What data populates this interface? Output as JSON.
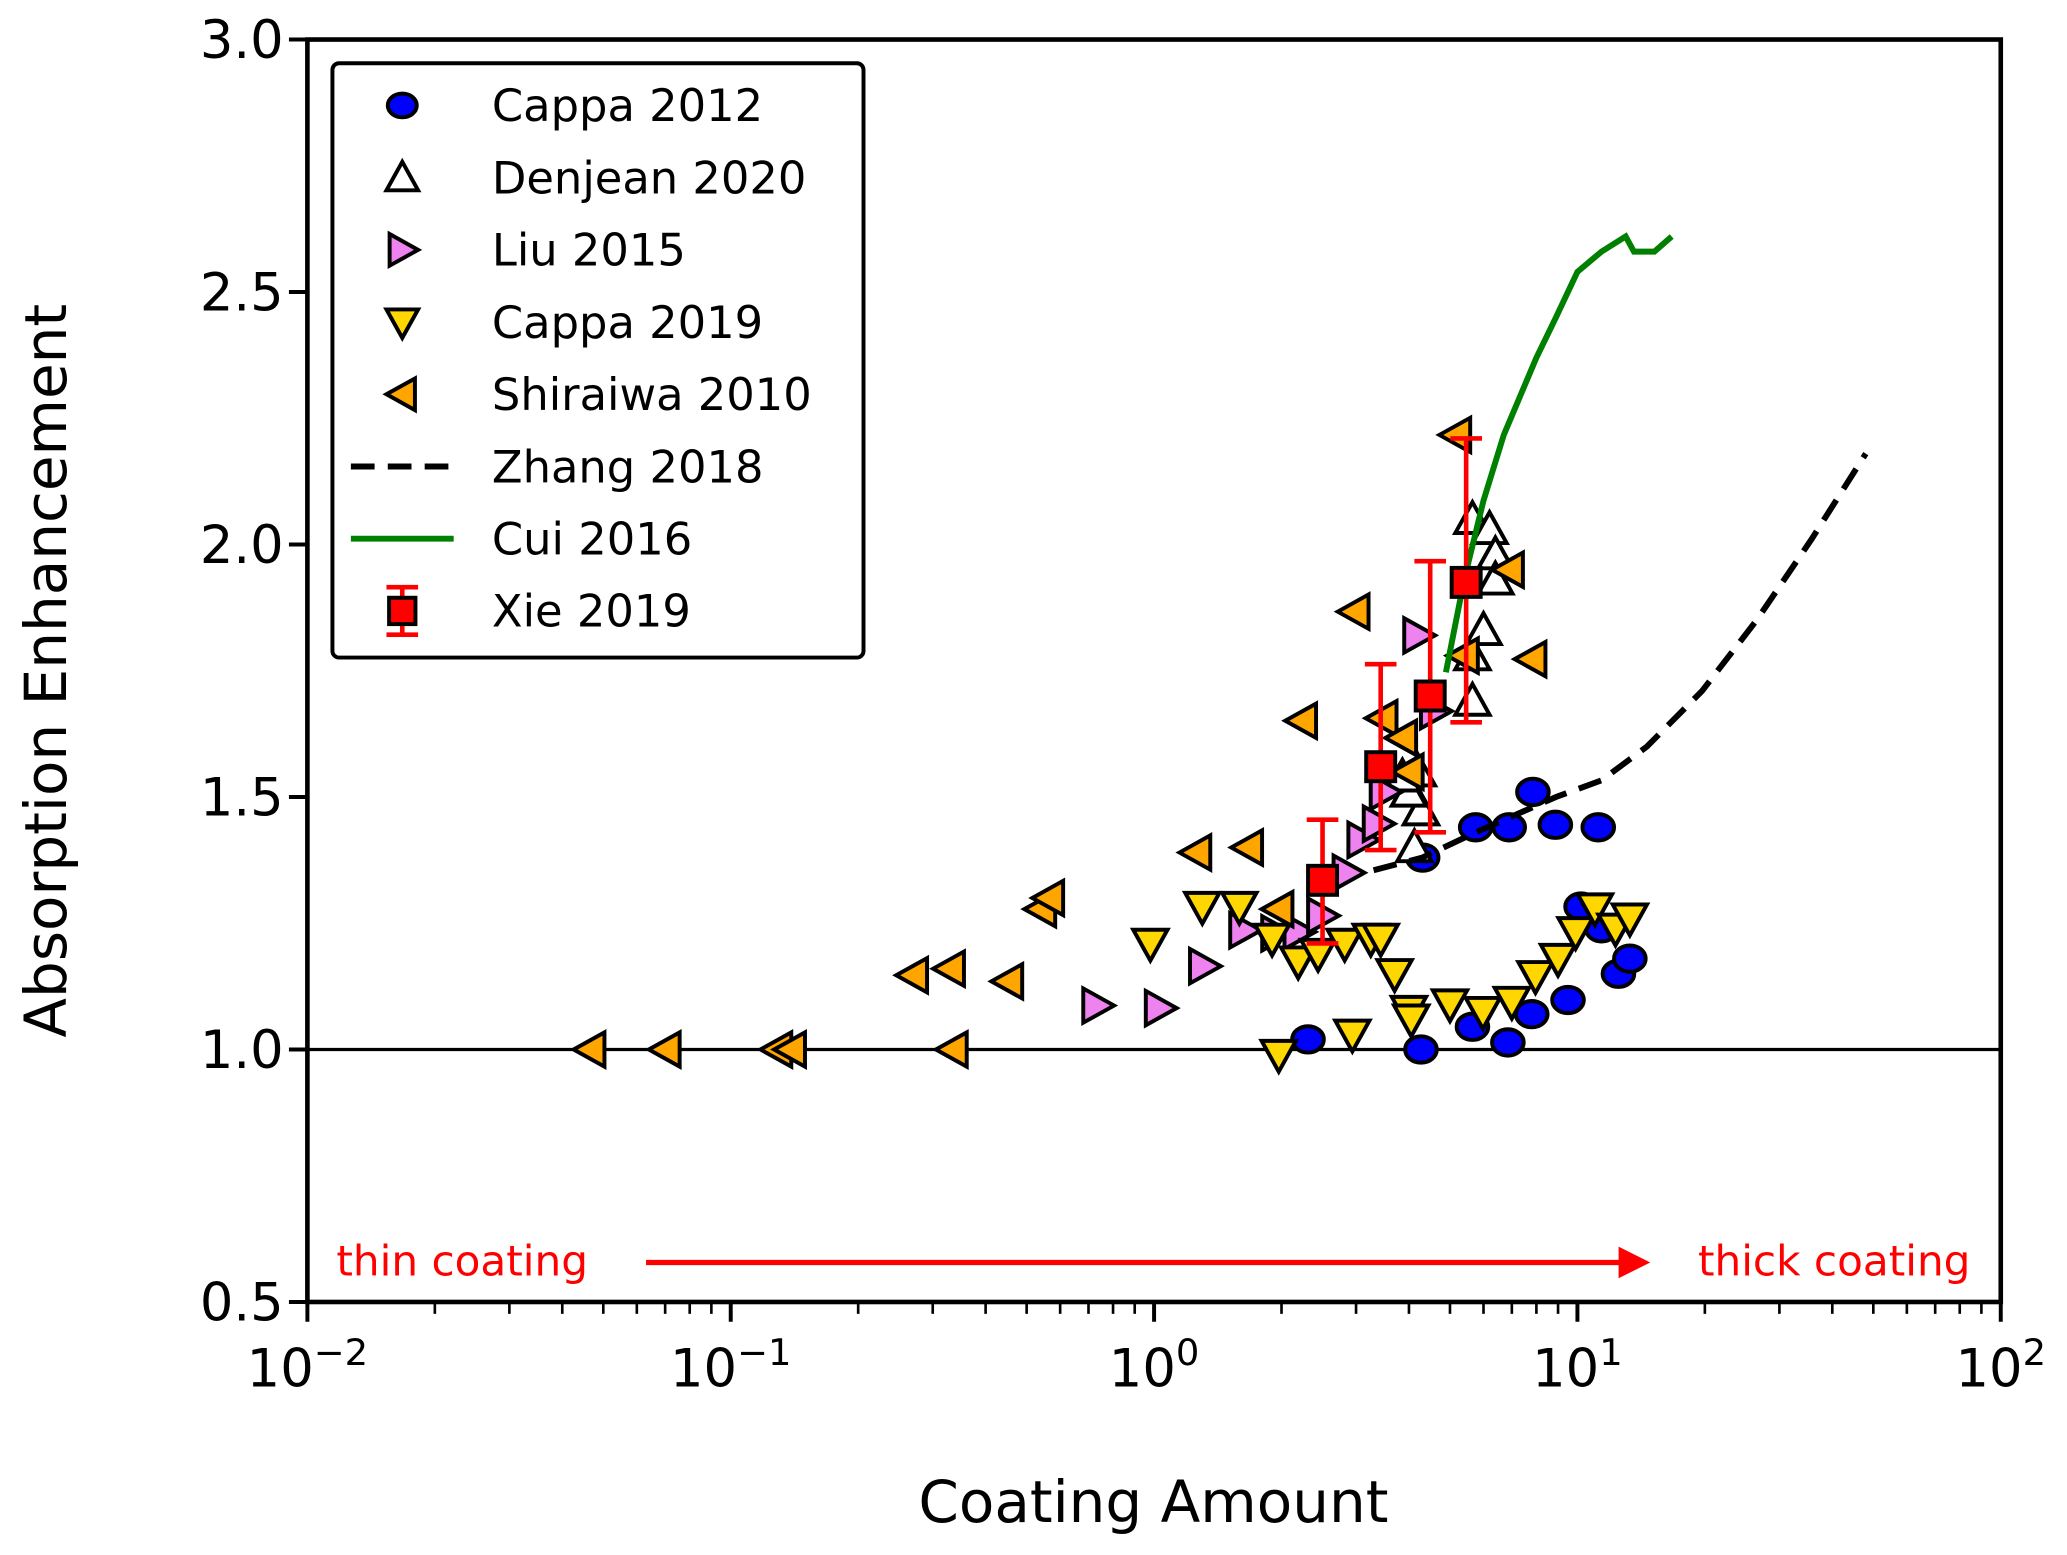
{
  "chart_data": {
    "type": "scatter",
    "xlabel": "Coating Amount",
    "ylabel": "Absorption Enhancement",
    "xscale": "log",
    "xlim": [
      0.01,
      100
    ],
    "ylim": [
      0.5,
      3.0
    ],
    "xticks": [
      {
        "v": 0.01,
        "base": "10",
        "exp": "−2"
      },
      {
        "v": 0.1,
        "base": "10",
        "exp": "−1"
      },
      {
        "v": 1,
        "base": "10",
        "exp": "0"
      },
      {
        "v": 10,
        "base": "10",
        "exp": "1"
      },
      {
        "v": 100,
        "base": "10",
        "exp": "2"
      }
    ],
    "yticks": [
      "0.5",
      "1.0",
      "1.5",
      "2.0",
      "2.5",
      "3.0"
    ],
    "reference_line_y": 1.0,
    "legend_position": "top-left",
    "annotations": {
      "left": "thin coating",
      "right": "thick coating",
      "color": "#ff0000"
    },
    "series": [
      {
        "name": "Cappa 2012",
        "marker": "circle",
        "fill": "#0000ff",
        "x": [
          2.31,
          4.27,
          4.31,
          5.65,
          5.75,
          6.9,
          6.85,
          7.85,
          8.87,
          11.2,
          7.8,
          9.5,
          10.2,
          12.5,
          13.3,
          11.4
        ],
        "y": [
          1.02,
          1.0,
          1.38,
          1.045,
          1.44,
          1.44,
          1.014,
          1.51,
          1.445,
          1.44,
          1.07,
          1.098,
          1.283,
          1.15,
          1.18,
          1.24
        ]
      },
      {
        "name": "Denjean 2020",
        "marker": "triangle-up",
        "fill": "#ffffff",
        "x": [
          4.12,
          4.27,
          4.0,
          4.2,
          3.86,
          5.65,
          5.65,
          6.0,
          5.65,
          6.2,
          6.4,
          6.4
        ],
        "y": [
          1.4,
          1.473,
          1.51,
          1.55,
          1.54,
          1.69,
          1.78,
          1.83,
          2.05,
          2.03,
          1.98,
          1.93
        ]
      },
      {
        "name": "Liu 2015",
        "marker": "triangle-right",
        "fill": "#ee82ee",
        "x": [
          0.733,
          1.03,
          1.31,
          1.63,
          1.94,
          2.19,
          2.49,
          2.86,
          3.1,
          3.37,
          3.5,
          4.2,
          4.6
        ],
        "y": [
          1.087,
          1.082,
          1.165,
          1.236,
          1.23,
          1.233,
          1.265,
          1.35,
          1.415,
          1.447,
          1.51,
          1.82,
          1.67
        ]
      },
      {
        "name": "Cappa 2019",
        "marker": "triangle-down",
        "fill": "#ffd700",
        "x": [
          0.98,
          1.3,
          1.59,
          1.9,
          1.97,
          2.19,
          2.44,
          2.82,
          2.94,
          3.25,
          3.43,
          3.7,
          4.0,
          4.05,
          5.0,
          5.98,
          7.0,
          7.96,
          9.0,
          9.9,
          11.0,
          12.3,
          13.3
        ],
        "y": [
          1.21,
          1.283,
          1.283,
          1.22,
          0.99,
          1.175,
          1.19,
          1.21,
          1.03,
          1.22,
          1.22,
          1.15,
          1.077,
          1.06,
          1.09,
          1.075,
          1.095,
          1.146,
          1.18,
          1.233,
          1.28,
          1.24,
          1.26
        ]
      },
      {
        "name": "Shiraiwa 2010",
        "marker": "triangle-left",
        "fill": "#ffa500",
        "x": [
          0.0467,
          0.0703,
          0.129,
          0.139,
          0.335,
          0.27,
          0.33,
          0.453,
          0.542,
          0.566,
          1.26,
          1.67,
          1.97,
          2.24,
          2.98,
          3.47,
          3.86,
          4.0,
          5.18,
          5.4,
          6.9,
          7.8
        ],
        "y": [
          1.0,
          1.0,
          1.0,
          1.0,
          1.0,
          1.147,
          1.16,
          1.135,
          1.278,
          1.3,
          1.39,
          1.4,
          1.278,
          1.651,
          1.867,
          1.656,
          1.617,
          1.55,
          2.217,
          1.78,
          1.95,
          1.773
        ]
      },
      {
        "name": "Zhang 2018",
        "line": "dashed",
        "color": "#000000",
        "x": [
          3.3,
          4.3,
          5.75,
          8.9,
          11.4,
          14.6,
          19.7,
          26.5,
          35.7,
          48
        ],
        "y": [
          1.355,
          1.38,
          1.43,
          1.5,
          1.533,
          1.6,
          1.71,
          1.85,
          2.01,
          2.18
        ]
      },
      {
        "name": "Cui 2016",
        "line": "solid",
        "color": "#008000",
        "x": [
          4.89,
          5.4,
          6.0,
          6.7,
          8.0,
          8.9,
          10.0,
          11.4,
          13.0,
          13.6,
          15.2,
          16.7
        ],
        "y": [
          1.747,
          1.93,
          2.087,
          2.217,
          2.37,
          2.45,
          2.54,
          2.58,
          2.61,
          2.58,
          2.58,
          2.61
        ]
      },
      {
        "name": "Xie 2019",
        "marker": "square",
        "fill": "#ff0000",
        "errorbar_color": "#ff0000",
        "x": [
          2.5,
          3.43,
          4.49,
          5.46
        ],
        "y": [
          1.335,
          1.56,
          1.7,
          1.925
        ],
        "yerr_low": [
          1.21,
          1.395,
          1.43,
          1.648
        ],
        "yerr_high": [
          1.455,
          1.763,
          1.967,
          2.21
        ]
      }
    ]
  }
}
